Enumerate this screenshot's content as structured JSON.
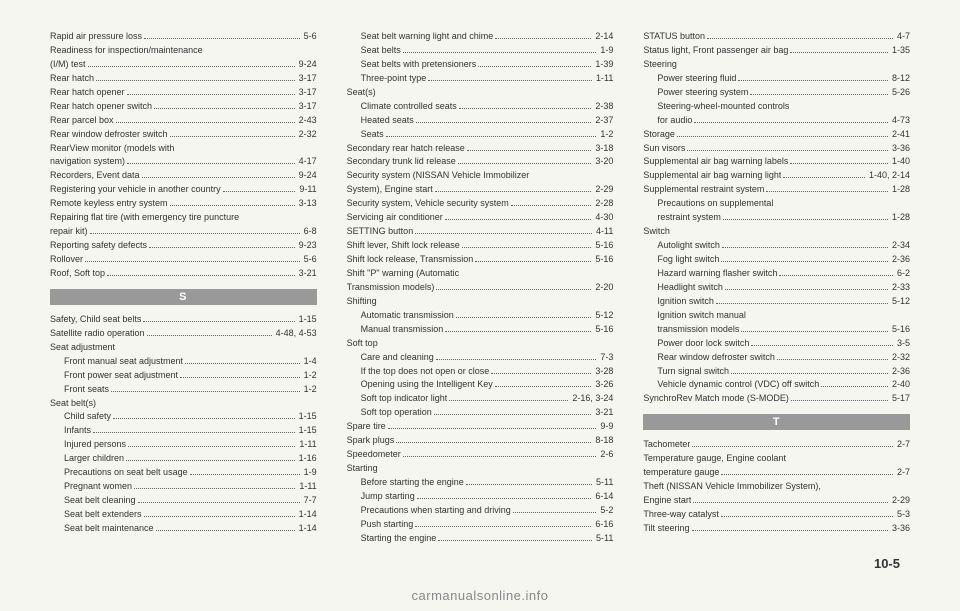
{
  "page_number": "10-5",
  "watermark": "carmanualsonline.info",
  "columns": [
    {
      "items": [
        {
          "t": "entry",
          "label": "Rapid air pressure loss",
          "page": "5-6"
        },
        {
          "t": "text",
          "label": "Readiness for inspection/maintenance"
        },
        {
          "t": "entry",
          "label": "(I/M) test",
          "page": "9-24"
        },
        {
          "t": "entry",
          "label": "Rear hatch",
          "page": "3-17"
        },
        {
          "t": "entry",
          "label": "Rear hatch opener",
          "page": "3-17"
        },
        {
          "t": "entry",
          "label": "Rear hatch opener switch",
          "page": "3-17"
        },
        {
          "t": "entry",
          "label": "Rear parcel box",
          "page": "2-43"
        },
        {
          "t": "entry",
          "label": "Rear window defroster switch",
          "page": "2-32"
        },
        {
          "t": "text",
          "label": "RearView monitor (models with"
        },
        {
          "t": "entry",
          "label": "navigation system)",
          "page": "4-17"
        },
        {
          "t": "entry",
          "label": "Recorders, Event data",
          "page": "9-24"
        },
        {
          "t": "entry",
          "label": "Registering your vehicle in another country",
          "page": "9-11"
        },
        {
          "t": "entry",
          "label": "Remote keyless entry system",
          "page": "3-13"
        },
        {
          "t": "text",
          "label": "Repairing flat tire (with emergency tire puncture"
        },
        {
          "t": "entry",
          "label": "repair kit)",
          "page": "6-8"
        },
        {
          "t": "entry",
          "label": "Reporting safety defects",
          "page": "9-23"
        },
        {
          "t": "entry",
          "label": "Rollover",
          "page": "5-6"
        },
        {
          "t": "entry",
          "label": "Roof, Soft top",
          "page": "3-21"
        },
        {
          "t": "head",
          "label": "S"
        },
        {
          "t": "entry",
          "label": "Safety, Child seat belts",
          "page": "1-15"
        },
        {
          "t": "entry",
          "label": "Satellite radio operation",
          "page": "4-48, 4-53"
        },
        {
          "t": "text",
          "label": "Seat adjustment"
        },
        {
          "t": "entry",
          "sub": true,
          "label": "Front manual seat adjustment",
          "page": "1-4"
        },
        {
          "t": "entry",
          "sub": true,
          "label": "Front power seat adjustment",
          "page": "1-2"
        },
        {
          "t": "entry",
          "sub": true,
          "label": "Front seats",
          "page": "1-2"
        },
        {
          "t": "text",
          "label": "Seat belt(s)"
        },
        {
          "t": "entry",
          "sub": true,
          "label": "Child safety",
          "page": "1-15"
        },
        {
          "t": "entry",
          "sub": true,
          "label": "Infants",
          "page": "1-15"
        },
        {
          "t": "entry",
          "sub": true,
          "label": "Injured persons",
          "page": "1-11"
        },
        {
          "t": "entry",
          "sub": true,
          "label": "Larger children",
          "page": "1-16"
        },
        {
          "t": "entry",
          "sub": true,
          "label": "Precautions on seat belt usage",
          "page": "1-9"
        },
        {
          "t": "entry",
          "sub": true,
          "label": "Pregnant women",
          "page": "1-11"
        },
        {
          "t": "entry",
          "sub": true,
          "label": "Seat belt cleaning",
          "page": "7-7"
        },
        {
          "t": "entry",
          "sub": true,
          "label": "Seat belt extenders",
          "page": "1-14"
        },
        {
          "t": "entry",
          "sub": true,
          "label": "Seat belt maintenance",
          "page": "1-14"
        }
      ]
    },
    {
      "items": [
        {
          "t": "entry",
          "sub": true,
          "label": "Seat belt warning light and chime",
          "page": "2-14"
        },
        {
          "t": "entry",
          "sub": true,
          "label": "Seat belts",
          "page": "1-9"
        },
        {
          "t": "entry",
          "sub": true,
          "label": "Seat belts with pretensioners",
          "page": "1-39"
        },
        {
          "t": "entry",
          "sub": true,
          "label": "Three-point type",
          "page": "1-11"
        },
        {
          "t": "text",
          "label": "Seat(s)"
        },
        {
          "t": "entry",
          "sub": true,
          "label": "Climate controlled seats",
          "page": "2-38"
        },
        {
          "t": "entry",
          "sub": true,
          "label": "Heated seats",
          "page": "2-37"
        },
        {
          "t": "entry",
          "sub": true,
          "label": "Seats",
          "page": "1-2"
        },
        {
          "t": "entry",
          "label": "Secondary rear hatch release",
          "page": "3-18"
        },
        {
          "t": "entry",
          "label": "Secondary trunk lid release",
          "page": "3-20"
        },
        {
          "t": "text",
          "label": "Security system (NISSAN Vehicle Immobilizer"
        },
        {
          "t": "entry",
          "label": "System), Engine start",
          "page": "2-29"
        },
        {
          "t": "entry",
          "label": "Security system, Vehicle security system",
          "page": "2-28"
        },
        {
          "t": "entry",
          "label": "Servicing air conditioner",
          "page": "4-30"
        },
        {
          "t": "entry",
          "label": "SETTING button",
          "page": "4-11"
        },
        {
          "t": "entry",
          "label": "Shift lever, Shift lock release",
          "page": "5-16"
        },
        {
          "t": "entry",
          "label": "Shift lock release, Transmission",
          "page": "5-16"
        },
        {
          "t": "text",
          "label": "Shift \"P\" warning (Automatic"
        },
        {
          "t": "entry",
          "label": "Transmission models)",
          "page": "2-20"
        },
        {
          "t": "text",
          "label": "Shifting"
        },
        {
          "t": "entry",
          "sub": true,
          "label": "Automatic transmission",
          "page": "5-12"
        },
        {
          "t": "entry",
          "sub": true,
          "label": "Manual transmission",
          "page": "5-16"
        },
        {
          "t": "text",
          "label": "Soft top"
        },
        {
          "t": "entry",
          "sub": true,
          "label": "Care and cleaning",
          "page": "7-3"
        },
        {
          "t": "entry",
          "sub": true,
          "label": "If the top does not open or close",
          "page": "3-28"
        },
        {
          "t": "entry",
          "sub": true,
          "label": "Opening using the Intelligent Key",
          "page": "3-26"
        },
        {
          "t": "entry",
          "sub": true,
          "label": "Soft top indicator light",
          "page": "2-16, 3-24"
        },
        {
          "t": "entry",
          "sub": true,
          "label": "Soft top operation",
          "page": "3-21"
        },
        {
          "t": "entry",
          "label": "Spare tire",
          "page": "9-9"
        },
        {
          "t": "entry",
          "label": "Spark plugs",
          "page": "8-18"
        },
        {
          "t": "entry",
          "label": "Speedometer",
          "page": "2-6"
        },
        {
          "t": "text",
          "label": "Starting"
        },
        {
          "t": "entry",
          "sub": true,
          "label": "Before starting the engine",
          "page": "5-11"
        },
        {
          "t": "entry",
          "sub": true,
          "label": "Jump starting",
          "page": "6-14"
        },
        {
          "t": "entry",
          "sub": true,
          "label": "Precautions when starting and driving",
          "page": "5-2"
        },
        {
          "t": "entry",
          "sub": true,
          "label": "Push starting",
          "page": "6-16"
        },
        {
          "t": "entry",
          "sub": true,
          "label": "Starting the engine",
          "page": "5-11"
        }
      ]
    },
    {
      "items": [
        {
          "t": "entry",
          "label": "STATUS button",
          "page": "4-7"
        },
        {
          "t": "entry",
          "label": "Status light, Front passenger air bag",
          "page": "1-35"
        },
        {
          "t": "text",
          "label": "Steering"
        },
        {
          "t": "entry",
          "sub": true,
          "label": "Power steering fluid",
          "page": "8-12"
        },
        {
          "t": "entry",
          "sub": true,
          "label": "Power steering system",
          "page": "5-26"
        },
        {
          "t": "text",
          "sub": true,
          "label": "Steering-wheel-mounted controls"
        },
        {
          "t": "entry",
          "sub": true,
          "label": "for audio",
          "page": "4-73"
        },
        {
          "t": "entry",
          "label": "Storage",
          "page": "2-41"
        },
        {
          "t": "entry",
          "label": "Sun visors",
          "page": "3-36"
        },
        {
          "t": "entry",
          "label": "Supplemental air bag warning labels",
          "page": "1-40"
        },
        {
          "t": "entry",
          "label": "Supplemental air bag warning light",
          "page": "1-40, 2-14"
        },
        {
          "t": "entry",
          "label": "Supplemental restraint system",
          "page": "1-28"
        },
        {
          "t": "text",
          "sub": true,
          "label": "Precautions on supplemental"
        },
        {
          "t": "entry",
          "sub": true,
          "label": "restraint system",
          "page": "1-28"
        },
        {
          "t": "text",
          "label": "Switch"
        },
        {
          "t": "entry",
          "sub": true,
          "label": "Autolight switch",
          "page": "2-34"
        },
        {
          "t": "entry",
          "sub": true,
          "label": "Fog light switch",
          "page": "2-36"
        },
        {
          "t": "entry",
          "sub": true,
          "label": "Hazard warning flasher switch",
          "page": "6-2"
        },
        {
          "t": "entry",
          "sub": true,
          "label": "Headlight switch",
          "page": "2-33"
        },
        {
          "t": "entry",
          "sub": true,
          "label": "Ignition switch",
          "page": "5-12"
        },
        {
          "t": "text",
          "sub": true,
          "label": "Ignition switch manual"
        },
        {
          "t": "entry",
          "sub": true,
          "label": "transmission models",
          "page": "5-16"
        },
        {
          "t": "entry",
          "sub": true,
          "label": "Power door lock switch",
          "page": "3-5"
        },
        {
          "t": "entry",
          "sub": true,
          "label": "Rear window defroster switch",
          "page": "2-32"
        },
        {
          "t": "entry",
          "sub": true,
          "label": "Turn signal switch",
          "page": "2-36"
        },
        {
          "t": "entry",
          "sub": true,
          "label": "Vehicle dynamic control (VDC) off switch",
          "page": "2-40"
        },
        {
          "t": "entry",
          "label": "SynchroRev Match mode (S-MODE)",
          "page": "5-17"
        },
        {
          "t": "head",
          "label": "T"
        },
        {
          "t": "entry",
          "label": "Tachometer",
          "page": "2-7"
        },
        {
          "t": "text",
          "label": "Temperature gauge, Engine coolant"
        },
        {
          "t": "entry",
          "label": "temperature gauge",
          "page": "2-7"
        },
        {
          "t": "text",
          "label": "Theft (NISSAN Vehicle Immobilizer System),"
        },
        {
          "t": "entry",
          "label": "Engine start",
          "page": "2-29"
        },
        {
          "t": "entry",
          "label": "Three-way catalyst",
          "page": "5-3"
        },
        {
          "t": "entry",
          "label": "Tilt steering",
          "page": "3-36"
        }
      ]
    }
  ]
}
